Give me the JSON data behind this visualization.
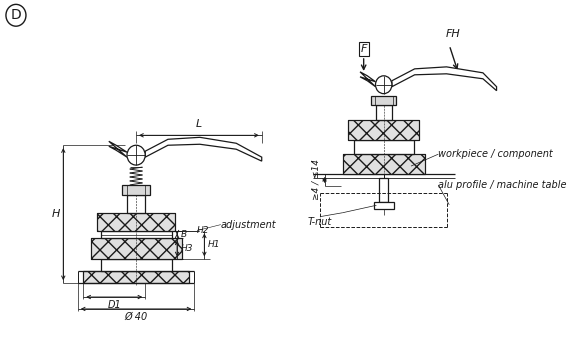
{
  "title": "D",
  "bg_color": "#ffffff",
  "line_color": "#1a1a1a",
  "fig_width": 5.82,
  "fig_height": 3.52,
  "labels": {
    "L": "L",
    "H": "H",
    "H1": "H1",
    "H2": "H2",
    "H3": "H3",
    "B": "B",
    "D1": "D1",
    "phi40": "Ø 40",
    "adjustment": "adjustment",
    "F": "F",
    "FH": "FH",
    "ge4_le14": "≥4 / ≤14",
    "workpiece": "workpiece / component",
    "alu_profile": "alu profile / machine table",
    "T_nut": "T-nut"
  }
}
